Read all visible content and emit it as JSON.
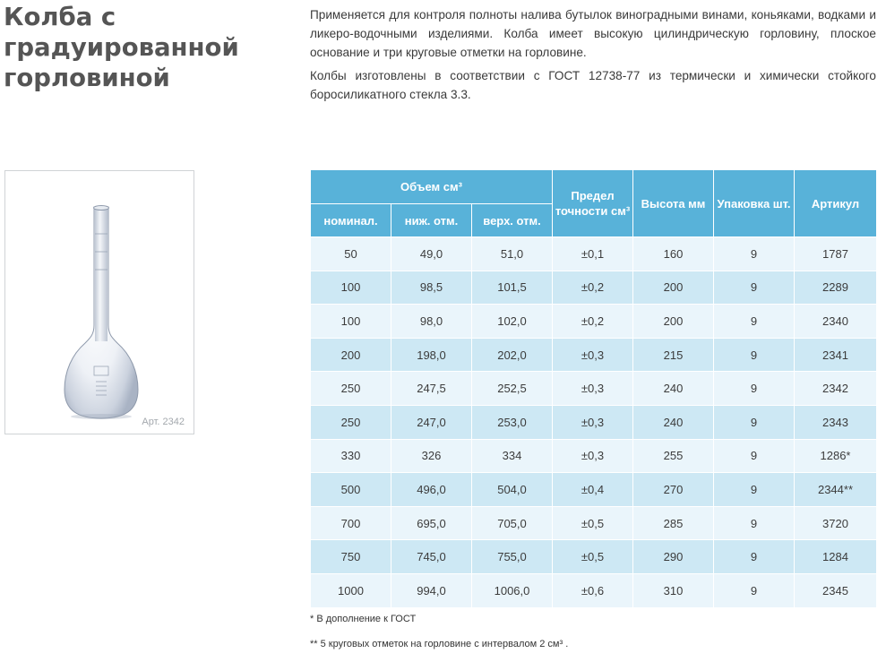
{
  "title": [
    "Колба с",
    "градуированной",
    "горловиной"
  ],
  "intro": [
    "Применяется для контроля полноты налива бутылок виноградными винами, коньяками, водками и ликеро-водочными изделиями. Колба имеет высокую цилиндрическую горловину, плоское основание и три круговые  отметки на горловине.",
    "Колбы изготовлены в соответствии с ГОСТ 12738-77 из термически и химически стойкого боросиликатного стекла 3.3."
  ],
  "image": {
    "caption": "Арт. 2342"
  },
  "table": {
    "group_header": "Объем см³",
    "sub_headers": [
      "номинал.",
      "ниж. отм.",
      "верх. отм."
    ],
    "headers": [
      "Предел точности см³",
      "Высота мм",
      "Упаковка шт.",
      "Артикул"
    ],
    "rows": [
      [
        "50",
        "49,0",
        "51,0",
        "±0,1",
        "160",
        "9",
        "1787"
      ],
      [
        "100",
        "98,5",
        "101,5",
        "±0,2",
        "200",
        "9",
        "2289"
      ],
      [
        "100",
        "98,0",
        "102,0",
        "±0,2",
        "200",
        "9",
        "2340"
      ],
      [
        "200",
        "198,0",
        "202,0",
        "±0,3",
        "215",
        "9",
        "2341"
      ],
      [
        "250",
        "247,5",
        "252,5",
        "±0,3",
        "240",
        "9",
        "2342"
      ],
      [
        "250",
        "247,0",
        "253,0",
        "±0,3",
        "240",
        "9",
        "2343"
      ],
      [
        "330",
        "326",
        "334",
        "±0,3",
        "255",
        "9",
        "1286*"
      ],
      [
        "500",
        "496,0",
        "504,0",
        "±0,4",
        "270",
        "9",
        "2344**"
      ],
      [
        "700",
        "695,0",
        "705,0",
        "±0,5",
        "285",
        "9",
        "3720"
      ],
      [
        "750",
        "745,0",
        "755,0",
        "±0,5",
        "290",
        "9",
        "1284"
      ],
      [
        "1000",
        "994,0",
        "1006,0",
        "±0,6",
        "310",
        "9",
        "2345"
      ]
    ]
  },
  "notes": [
    "* В дополнение к ГОСТ",
    "**  5 круговых отметок на горловине с интервалом 2 см³ ."
  ],
  "colors": {
    "header_bg": "#58b2d9",
    "row_light": "#eaf5fb",
    "row_dark": "#cde8f4"
  }
}
